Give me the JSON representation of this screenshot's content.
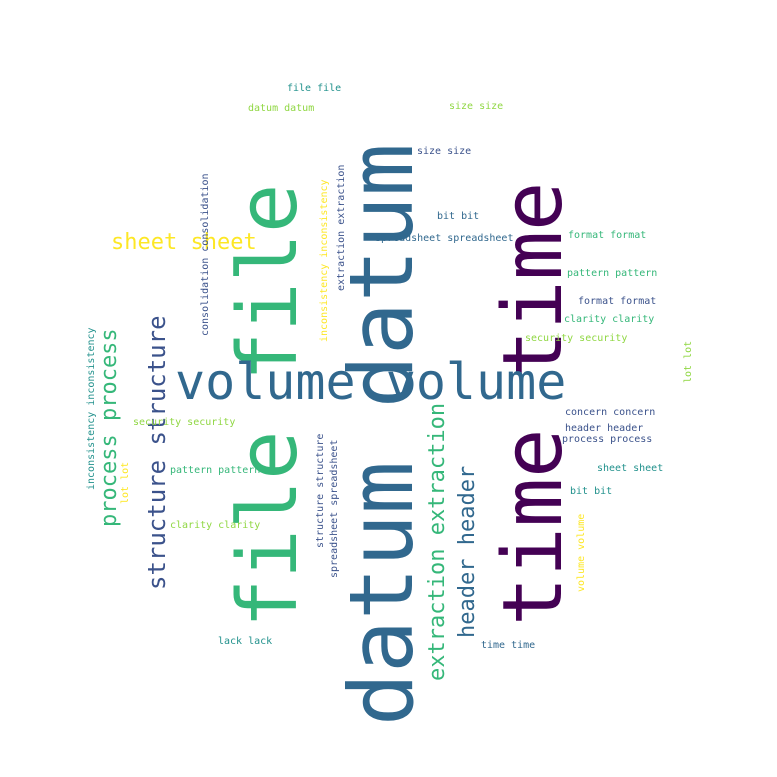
{
  "palette": {
    "dark_purple": "#440154",
    "indigo": "#3b528b",
    "teal": "#21918c",
    "blue_teal": "#31688e",
    "green": "#35b779",
    "light_green": "#90d743",
    "yellow": "#fde725"
  },
  "words": {
    "time_time": "time time",
    "datum_datum_big": "datum datum",
    "file_file_big": "file file",
    "volume_volume_1": "volume volume",
    "sheet_sheet_big": "sheet sheet",
    "process_process_big": "process process",
    "structure_structure_big": "structure structure",
    "extraction_extraction_big": "extraction extraction",
    "header_header_big": "header header",
    "file_file_small": "file file",
    "datum_datum_small": "datum datum",
    "size_size_1": "size size",
    "size_size_2": "size size",
    "consolidation": "consolidation consolidation",
    "inconsistency_1": "inconsistency inconsistency",
    "extraction_small": "extraction extraction",
    "bit_bit_1": "bit bit",
    "spreadsheet_1": "spreadsheet spreadsheet",
    "format_format_1": "format format",
    "pattern_pattern_1": "pattern pattern",
    "format_format_2": "format format",
    "clarity_clarity_1": "clarity clarity",
    "security_security_1": "security security",
    "lot_lot_1": "lot lot",
    "inconsistency_2": "inconsistency inconsistency",
    "lot_lot_2": "lot lot",
    "security_security_2": "security security",
    "concern_concern": "concern concern",
    "header_header_small": "header header",
    "process_process_small": "process process",
    "pattern_pattern_2": "pattern pattern",
    "sheet_sheet_small": "sheet sheet",
    "bit_bit_2": "bit bit",
    "clarity_clarity_2": "clarity clarity",
    "structure_small": "structure structure",
    "spreadsheet_2": "spreadsheet spreadsheet",
    "volume_volume_small": "volume volume",
    "lack_lack": "lack lack",
    "time_time_small": "time time"
  }
}
